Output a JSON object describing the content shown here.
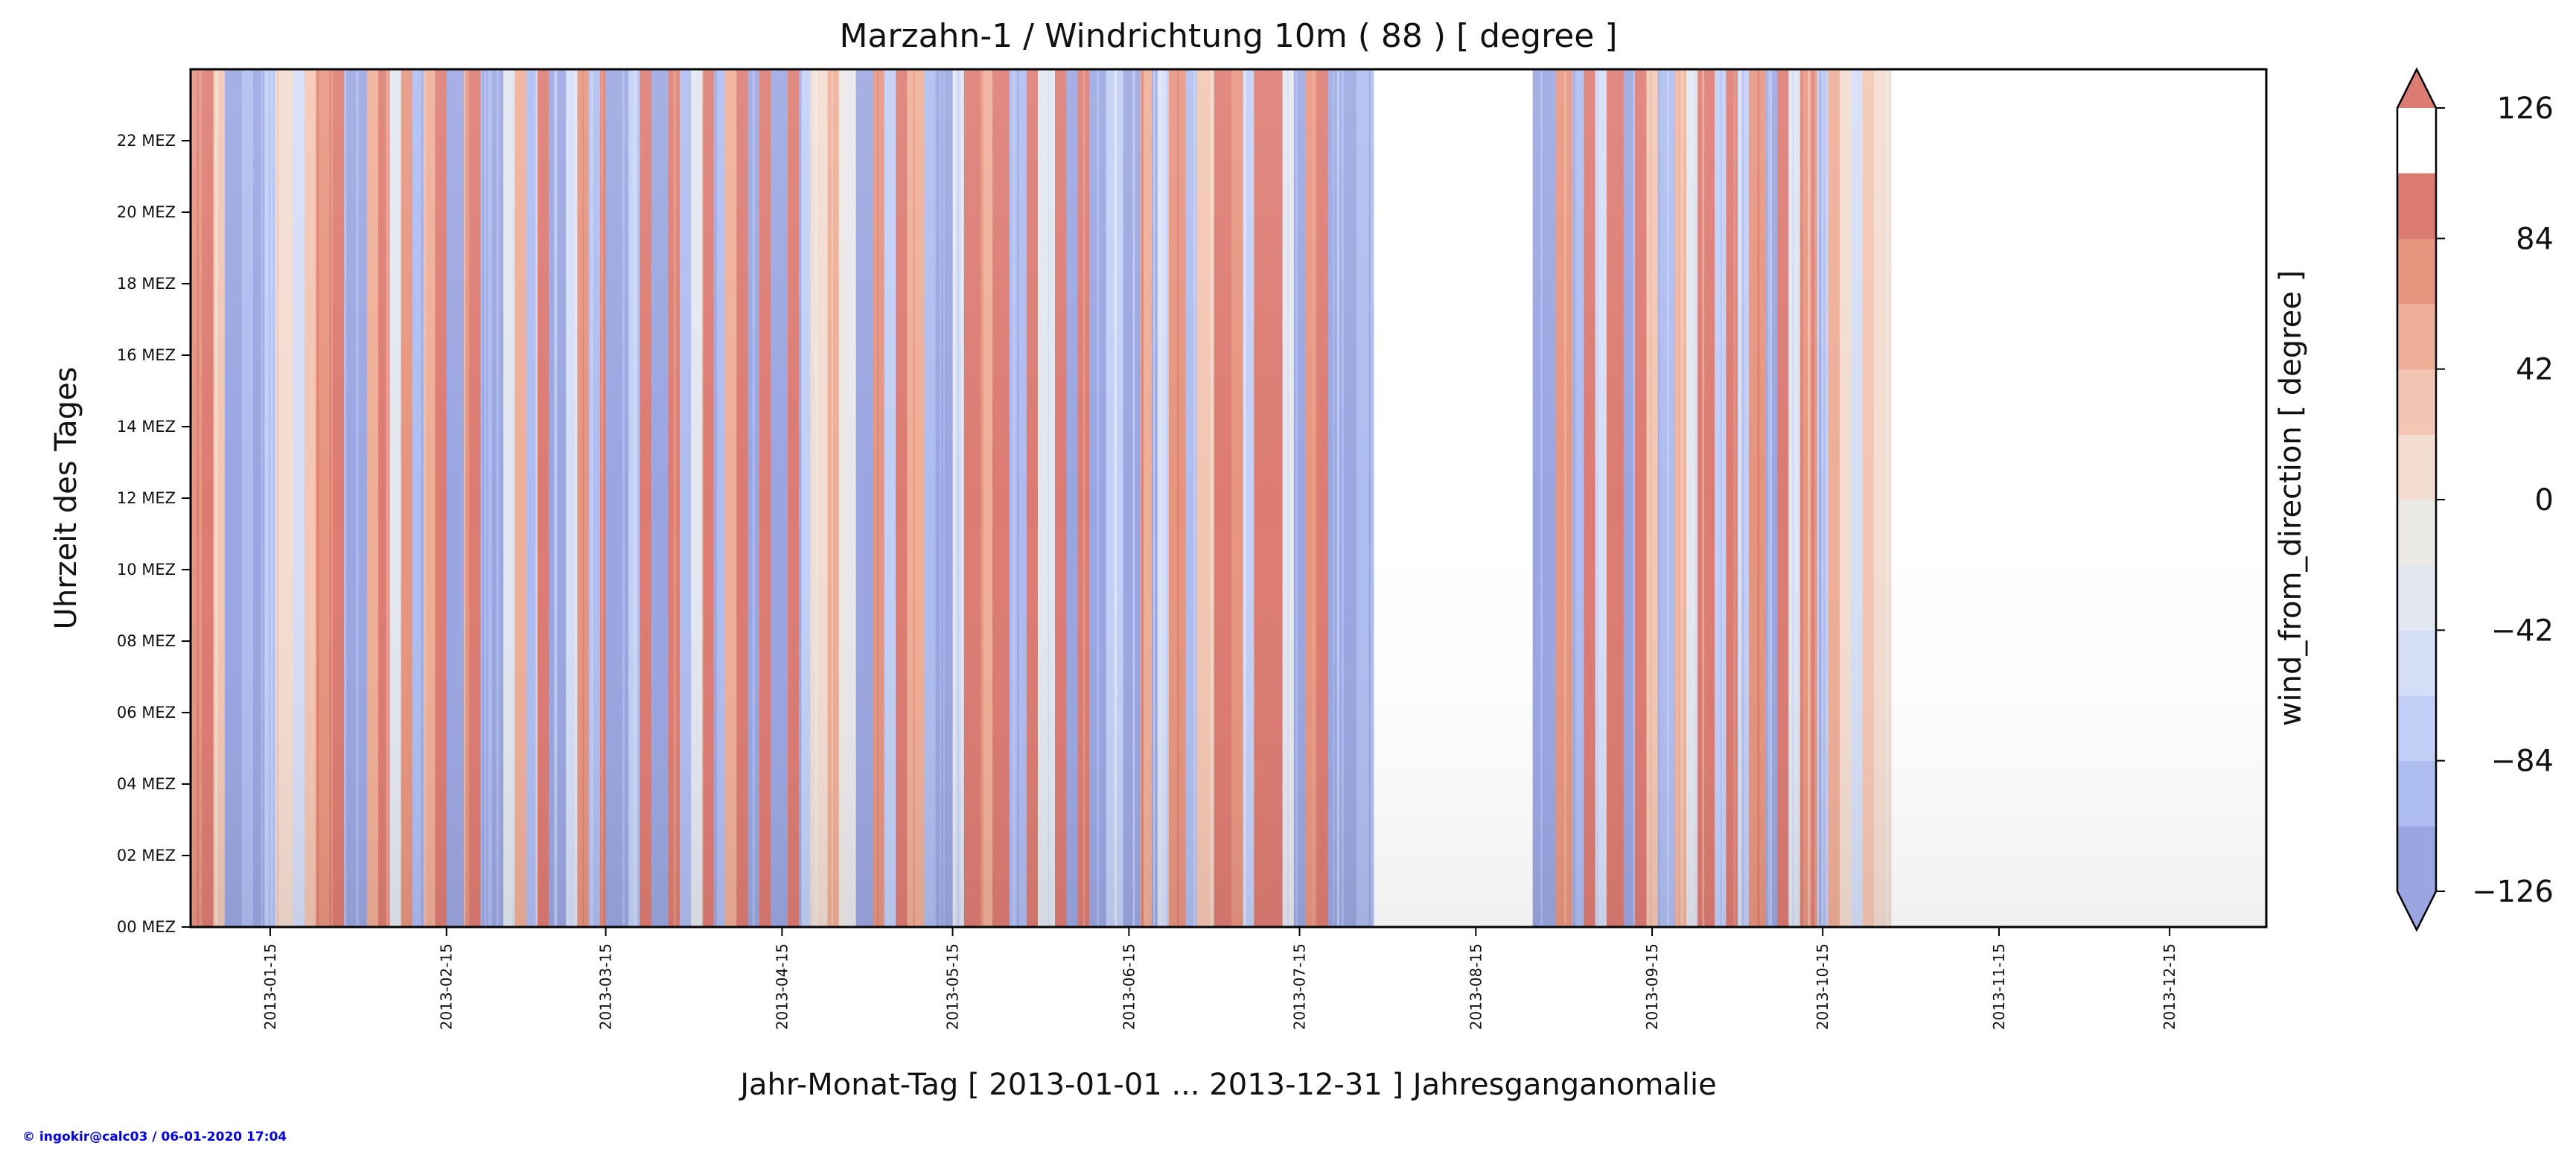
{
  "chart_data": {
    "type": "heatmap",
    "title": "Marzahn-1 / Windrichtung 10m ( 88 ) [ degree ]",
    "xlabel": "Jahr-Monat-Tag [ 2013-01-01 ... 2013-12-31 ] Jahresganganomalie",
    "ylabel": "Uhrzeit des Tages",
    "colorbar_label": "wind_from_direction [ degree ]",
    "x_range": [
      "2013-01-01",
      "2013-12-31"
    ],
    "x_ticks": [
      "2013-01-15",
      "2013-02-15",
      "2013-03-15",
      "2013-04-15",
      "2013-05-15",
      "2013-06-15",
      "2013-07-15",
      "2013-08-15",
      "2013-09-15",
      "2013-10-15",
      "2013-11-15",
      "2013-12-15"
    ],
    "y_range_hours": [
      0,
      24
    ],
    "y_ticks": [
      {
        "hour": 0,
        "label": "00 MEZ"
      },
      {
        "hour": 2,
        "label": "02 MEZ"
      },
      {
        "hour": 4,
        "label": "04 MEZ"
      },
      {
        "hour": 6,
        "label": "06 MEZ"
      },
      {
        "hour": 8,
        "label": "08 MEZ"
      },
      {
        "hour": 10,
        "label": "10 MEZ"
      },
      {
        "hour": 12,
        "label": "12 MEZ"
      },
      {
        "hour": 14,
        "label": "14 MEZ"
      },
      {
        "hour": 16,
        "label": "16 MEZ"
      },
      {
        "hour": 18,
        "label": "18 MEZ"
      },
      {
        "hour": 20,
        "label": "20 MEZ"
      },
      {
        "hour": 22,
        "label": "22 MEZ"
      }
    ],
    "colorbar_range": [
      -126,
      126
    ],
    "colorbar_ticks": [
      {
        "value": -126,
        "label": "−126"
      },
      {
        "value": -84,
        "label": "−84"
      },
      {
        "value": -42,
        "label": "−42"
      },
      {
        "value": 0,
        "label": "0"
      },
      {
        "value": 42,
        "label": "42"
      },
      {
        "value": 84,
        "label": "84"
      },
      {
        "value": 126,
        "label": "126"
      }
    ],
    "colorbar_levels": [
      -126,
      -105,
      -84,
      -63,
      -42,
      -21,
      0,
      21,
      42,
      63,
      84,
      105,
      126
    ],
    "colorbar_colors": [
      "#9aa6e0",
      "#aebdf0",
      "#c2cff6",
      "#d4def7",
      "#e2e7f0",
      "#ebe9e6",
      "#f3dcd0",
      "#f2c6b2",
      "#eeae97",
      "#e6957f",
      "#dc7b72"
    ],
    "colormap": "coolwarm",
    "extend": "both",
    "data_gaps": [
      [
        "2013-07-28",
        "2013-08-24"
      ],
      [
        "2013-10-27",
        "2013-12-31"
      ]
    ],
    "column_pattern": [
      {
        "from": "2013-01-01",
        "value": 80
      },
      {
        "from": "2013-01-03",
        "value": 105
      },
      {
        "from": "2013-01-05",
        "value": 40
      },
      {
        "from": "2013-01-07",
        "value": -115
      },
      {
        "from": "2013-01-10",
        "value": -85
      },
      {
        "from": "2013-01-12",
        "value": -120
      },
      {
        "from": "2013-01-14",
        "value": -70
      },
      {
        "from": "2013-01-16",
        "value": 15
      },
      {
        "from": "2013-01-19",
        "value": -50
      },
      {
        "from": "2013-01-21",
        "value": 30
      },
      {
        "from": "2013-01-23",
        "value": 75
      },
      {
        "from": "2013-01-26",
        "value": 110
      },
      {
        "from": "2013-01-28",
        "value": -110
      },
      {
        "from": "2013-01-30",
        "value": -120
      },
      {
        "from": "2013-02-01",
        "value": 45
      },
      {
        "from": "2013-02-03",
        "value": 90
      },
      {
        "from": "2013-02-05",
        "value": -40
      },
      {
        "from": "2013-02-07",
        "value": 70
      },
      {
        "from": "2013-02-09",
        "value": -100
      },
      {
        "from": "2013-02-11",
        "value": 60
      },
      {
        "from": "2013-02-13",
        "value": 110
      },
      {
        "from": "2013-02-15",
        "value": -110
      },
      {
        "from": "2013-02-18",
        "value": 70
      },
      {
        "from": "2013-02-19",
        "value": 115
      },
      {
        "from": "2013-02-21",
        "value": -95
      },
      {
        "from": "2013-02-23",
        "value": -120
      },
      {
        "from": "2013-02-25",
        "value": -30
      },
      {
        "from": "2013-02-27",
        "value": 60
      },
      {
        "from": "2013-03-01",
        "value": -90
      },
      {
        "from": "2013-03-03",
        "value": 100
      },
      {
        "from": "2013-03-05",
        "value": -120
      },
      {
        "from": "2013-03-08",
        "value": -60
      },
      {
        "from": "2013-03-10",
        "value": 80
      },
      {
        "from": "2013-03-12",
        "value": -105
      },
      {
        "from": "2013-03-14",
        "value": 95
      },
      {
        "from": "2013-03-15",
        "value": -120
      },
      {
        "from": "2013-03-19",
        "value": -70
      },
      {
        "from": "2013-03-21",
        "value": 105
      },
      {
        "from": "2013-03-23",
        "value": -115
      },
      {
        "from": "2013-03-26",
        "value": 95
      },
      {
        "from": "2013-03-28",
        "value": -100
      },
      {
        "from": "2013-03-30",
        "value": -40
      },
      {
        "from": "2013-04-01",
        "value": 85
      },
      {
        "from": "2013-04-03",
        "value": -90
      },
      {
        "from": "2013-04-05",
        "value": 50
      },
      {
        "from": "2013-04-07",
        "value": 110
      },
      {
        "from": "2013-04-09",
        "value": -110
      },
      {
        "from": "2013-04-11",
        "value": 100
      },
      {
        "from": "2013-04-13",
        "value": -120
      },
      {
        "from": "2013-04-16",
        "value": 110
      },
      {
        "from": "2013-04-18",
        "value": -80
      },
      {
        "from": "2013-04-20",
        "value": 20
      },
      {
        "from": "2013-04-23",
        "value": 60
      },
      {
        "from": "2013-04-25",
        "value": -20
      },
      {
        "from": "2013-04-28",
        "value": -110
      },
      {
        "from": "2013-05-01",
        "value": 70
      },
      {
        "from": "2013-05-03",
        "value": -80
      },
      {
        "from": "2013-05-05",
        "value": 100
      },
      {
        "from": "2013-05-07",
        "value": 50
      },
      {
        "from": "2013-05-10",
        "value": -100
      },
      {
        "from": "2013-05-12",
        "value": -120
      },
      {
        "from": "2013-05-15",
        "value": -45
      },
      {
        "from": "2013-05-17",
        "value": 100
      },
      {
        "from": "2013-05-20",
        "value": 60
      },
      {
        "from": "2013-05-22",
        "value": 120
      },
      {
        "from": "2013-05-25",
        "value": -100
      },
      {
        "from": "2013-05-28",
        "value": 110
      },
      {
        "from": "2013-05-30",
        "value": -30
      },
      {
        "from": "2013-06-02",
        "value": 105
      },
      {
        "from": "2013-06-04",
        "value": -120
      },
      {
        "from": "2013-06-06",
        "value": 100
      },
      {
        "from": "2013-06-08",
        "value": -115
      },
      {
        "from": "2013-06-11",
        "value": -70
      },
      {
        "from": "2013-06-14",
        "value": -115
      },
      {
        "from": "2013-06-17",
        "value": 60
      },
      {
        "from": "2013-06-19",
        "value": -110
      },
      {
        "from": "2013-06-20",
        "value": -50
      },
      {
        "from": "2013-06-22",
        "value": 80
      },
      {
        "from": "2013-06-25",
        "value": -100
      },
      {
        "from": "2013-06-27",
        "value": 30
      },
      {
        "from": "2013-06-30",
        "value": 100
      },
      {
        "from": "2013-07-03",
        "value": 70
      },
      {
        "from": "2013-07-05",
        "value": -80
      },
      {
        "from": "2013-07-07",
        "value": 110
      },
      {
        "from": "2013-07-09",
        "value": 90
      },
      {
        "from": "2013-07-12",
        "value": -30
      },
      {
        "from": "2013-07-14",
        "value": -115
      },
      {
        "from": "2013-07-16",
        "value": 80
      },
      {
        "from": "2013-07-18",
        "value": 115
      },
      {
        "from": "2013-07-20",
        "value": -110
      },
      {
        "from": "2013-07-22",
        "value": -120
      },
      {
        "from": "2013-07-25",
        "value": -90
      },
      {
        "from": "2013-07-28",
        "value": null
      },
      {
        "from": "2013-08-25",
        "value": -120
      },
      {
        "from": "2013-08-29",
        "value": 80
      },
      {
        "from": "2013-09-01",
        "value": -100
      },
      {
        "from": "2013-09-03",
        "value": 110
      },
      {
        "from": "2013-09-05",
        "value": -60
      },
      {
        "from": "2013-09-07",
        "value": 90
      },
      {
        "from": "2013-09-10",
        "value": -110
      },
      {
        "from": "2013-09-12",
        "value": 100
      },
      {
        "from": "2013-09-14",
        "value": 40
      },
      {
        "from": "2013-09-16",
        "value": -90
      },
      {
        "from": "2013-09-19",
        "value": 60
      },
      {
        "from": "2013-09-21",
        "value": -40
      },
      {
        "from": "2013-09-23",
        "value": 90
      },
      {
        "from": "2013-09-26",
        "value": -80
      },
      {
        "from": "2013-09-28",
        "value": 110
      },
      {
        "from": "2013-09-30",
        "value": -70
      },
      {
        "from": "2013-10-02",
        "value": 80
      },
      {
        "from": "2013-10-05",
        "value": -110
      },
      {
        "from": "2013-10-07",
        "value": 100
      },
      {
        "from": "2013-10-09",
        "value": -30
      },
      {
        "from": "2013-10-11",
        "value": 70
      },
      {
        "from": "2013-10-14",
        "value": -80
      },
      {
        "from": "2013-10-16",
        "value": 50
      },
      {
        "from": "2013-10-18",
        "value": 10
      },
      {
        "from": "2013-10-20",
        "value": -60
      },
      {
        "from": "2013-10-22",
        "value": 30
      },
      {
        "from": "2013-10-24",
        "value": 5
      },
      {
        "from": "2013-10-26",
        "value": 20
      },
      {
        "from": "2013-10-27",
        "value": null
      }
    ]
  },
  "footer": {
    "credit": "© ingokir@calc03 / 06-01-2020 17:04"
  }
}
